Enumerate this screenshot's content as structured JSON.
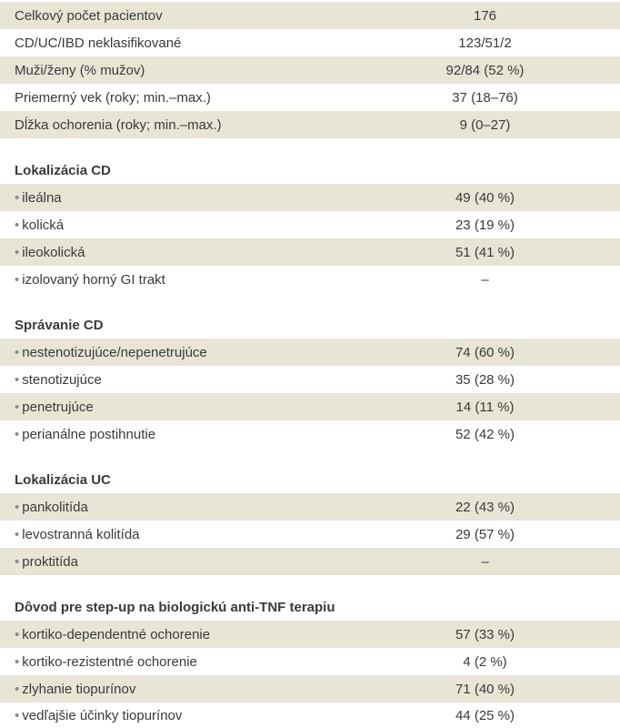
{
  "rows": [
    {
      "label": "Celkový počet pacientov",
      "value": "176"
    },
    {
      "label": "CD/UC/IBD neklasifikované",
      "value": "123/51/2"
    },
    {
      "label": "Muži/ženy (% mužov)",
      "value": "92/84 (52 %)"
    },
    {
      "label": "Priemerný vek (roky; min.–max.)",
      "value": "37 (18–76)"
    },
    {
      "label": "Dĺžka ochorenia (roky; min.–max.)",
      "value": "9 (0–27)"
    }
  ],
  "sections": [
    {
      "heading": "Lokalizácia CD",
      "items": [
        {
          "label": "ileálna",
          "value": "49 (40 %)"
        },
        {
          "label": "kolická",
          "value": "23 (19 %)"
        },
        {
          "label": "ileokolická",
          "value": "51 (41 %)"
        },
        {
          "label": "izolovaný horný GI trakt",
          "value": "–"
        }
      ]
    },
    {
      "heading": "Správanie CD",
      "items": [
        {
          "label": "nestenotizujúce/nepenetrujúce",
          "value": "74 (60 %)"
        },
        {
          "label": "stenotizujúce",
          "value": "35 (28 %)"
        },
        {
          "label": "penetrujúce",
          "value": "14 (11 %)"
        },
        {
          "label": "perianálne postihnutie",
          "value": "52 (42 %)"
        }
      ]
    },
    {
      "heading": "Lokalizácia UC",
      "items": [
        {
          "label": "pankolitída",
          "value": "22 (43 %)"
        },
        {
          "label": "levostranná kolitída",
          "value": "29 (57 %)"
        },
        {
          "label": "proktitída",
          "value": "–"
        }
      ]
    },
    {
      "heading": "Dôvod pre step-up na biologickú anti-TNF terapiu",
      "items": [
        {
          "label": "kortiko-dependentné ochorenie",
          "value": "57 (33 %)"
        },
        {
          "label": "kortiko-rezistentné ochorenie",
          "value": "4 (2 %)"
        },
        {
          "label": "zlyhanie tiopurínov",
          "value": "71 (40 %)"
        },
        {
          "label": "vedľajšie účinky tiopurínov",
          "value": "44 (25 %)"
        }
      ]
    }
  ]
}
